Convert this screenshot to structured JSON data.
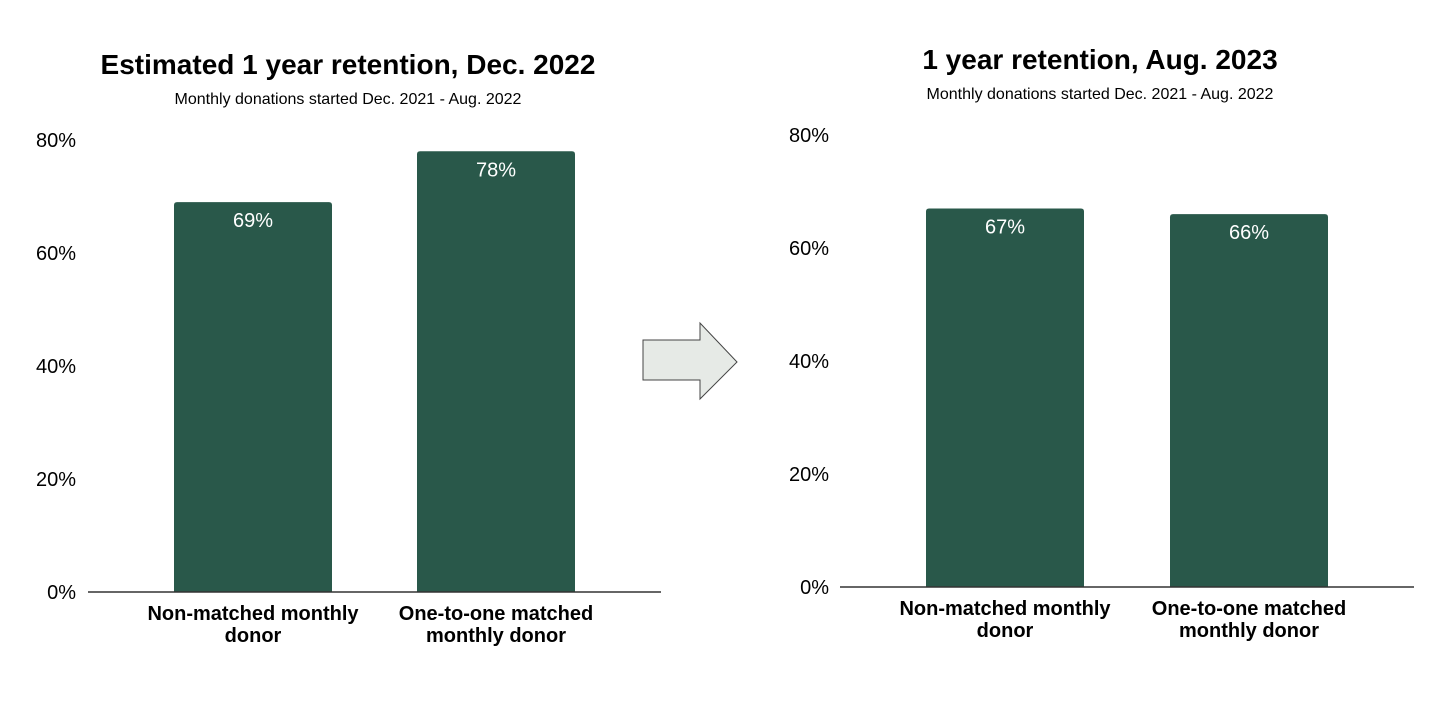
{
  "chart_data": [
    {
      "type": "bar",
      "title": "Estimated 1 year retention, Dec. 2022",
      "subtitle": "Monthly donations started Dec. 2021 - Aug. 2022",
      "categories": [
        [
          "Non-matched monthly",
          "donor"
        ],
        [
          "One-to-one matched",
          "monthly donor"
        ]
      ],
      "values": [
        69,
        78
      ],
      "data_labels": [
        "69%",
        "78%"
      ],
      "yticks": [
        "0%",
        "20%",
        "40%",
        "60%",
        "80%"
      ],
      "ylim": [
        0,
        80
      ],
      "grid": false,
      "color": "#29584a"
    },
    {
      "type": "bar",
      "title": "1 year retention, Aug. 2023",
      "subtitle": "Monthly donations started Dec. 2021 - Aug. 2022",
      "categories": [
        [
          "Non-matched monthly",
          "donor"
        ],
        [
          "One-to-one matched",
          "monthly donor"
        ]
      ],
      "values": [
        67,
        66
      ],
      "data_labels": [
        "67%",
        "66%"
      ],
      "yticks": [
        "0%",
        "20%",
        "40%",
        "60%",
        "80%"
      ],
      "ylim": [
        0,
        80
      ],
      "grid": false,
      "color": "#29584a"
    }
  ],
  "arrow": {
    "icon": "right-arrow-icon",
    "fill": "#e6eae6",
    "stroke": "#444444"
  }
}
